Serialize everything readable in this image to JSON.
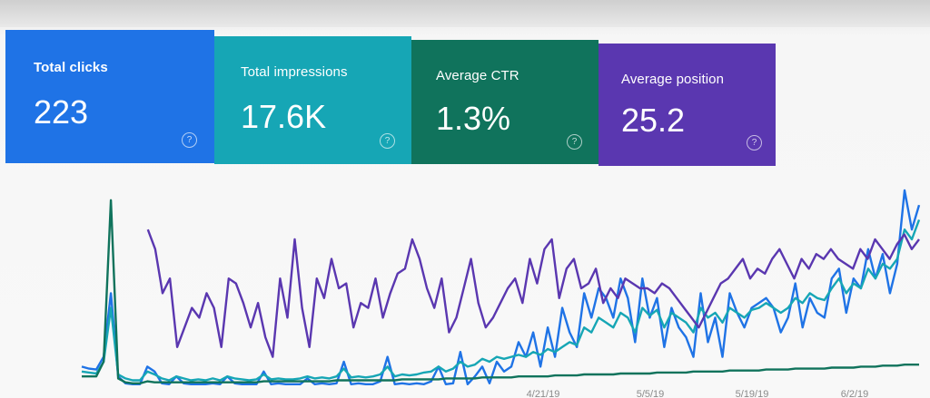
{
  "cards": [
    {
      "label": "Total clicks",
      "value": "223",
      "color": "#1f73e6"
    },
    {
      "label": "Total impressions",
      "value": "17.6K",
      "color": "#16a6b5"
    },
    {
      "label": "Average CTR",
      "value": "1.3%",
      "color": "#10735c"
    },
    {
      "label": "Average position",
      "value": "25.2",
      "color": "#5a37b0"
    }
  ],
  "help_glyph": "?",
  "chart_data": {
    "type": "line",
    "x_tick_labels": [
      "4/21/19",
      "5/5/19",
      "5/19/19",
      "6/2/19"
    ],
    "series": [
      {
        "color": "#1f73e6",
        "values": [
          20,
          18,
          17,
          30,
          95,
          10,
          3,
          2,
          2,
          20,
          15,
          3,
          2,
          10,
          3,
          2,
          2,
          2,
          3,
          2,
          10,
          3,
          2,
          2,
          2,
          15,
          2,
          3,
          2,
          2,
          2,
          8,
          2,
          3,
          2,
          3,
          25,
          2,
          3,
          2,
          2,
          5,
          30,
          2,
          3,
          2,
          3,
          2,
          5,
          20,
          2,
          3,
          35,
          2,
          10,
          20,
          3,
          25,
          15,
          20,
          45,
          30,
          55,
          20,
          60,
          30,
          80,
          55,
          40,
          95,
          70,
          100,
          90,
          70,
          110,
          90,
          45,
          110,
          70,
          90,
          40,
          80,
          60,
          50,
          30,
          95,
          45,
          70,
          30,
          95,
          75,
          60,
          80,
          85,
          90,
          80,
          55,
          70,
          105,
          60,
          90,
          75,
          70,
          110,
          120,
          75,
          110,
          100,
          140,
          110,
          135,
          95,
          125,
          200,
          160,
          185
        ]
      },
      {
        "color": "#16a6b5",
        "values": [
          15,
          14,
          13,
          25,
          80,
          12,
          8,
          6,
          6,
          15,
          12,
          8,
          6,
          10,
          8,
          6,
          7,
          6,
          8,
          6,
          10,
          8,
          7,
          6,
          7,
          12,
          7,
          8,
          7,
          7,
          8,
          10,
          8,
          9,
          8,
          10,
          18,
          9,
          10,
          9,
          10,
          12,
          20,
          10,
          12,
          11,
          12,
          14,
          15,
          20,
          15,
          18,
          25,
          20,
          22,
          28,
          25,
          30,
          28,
          30,
          32,
          30,
          35,
          32,
          38,
          35,
          40,
          45,
          42,
          60,
          55,
          70,
          65,
          60,
          75,
          70,
          55,
          80,
          72,
          78,
          60,
          75,
          70,
          65,
          55,
          80,
          70,
          75,
          65,
          80,
          75,
          70,
          78,
          80,
          85,
          80,
          75,
          80,
          90,
          85,
          95,
          90,
          88,
          100,
          110,
          95,
          105,
          100,
          120,
          110,
          125,
          120,
          130,
          160,
          150,
          170
        ]
      },
      {
        "color": "#10735c",
        "values": [
          10,
          10,
          10,
          25,
          190,
          8,
          4,
          3,
          3,
          5,
          4,
          4,
          4,
          4,
          4,
          4,
          4,
          4,
          4,
          4,
          4,
          4,
          4,
          4,
          4,
          5,
          5,
          5,
          5,
          5,
          5,
          5,
          5,
          5,
          5,
          6,
          6,
          6,
          6,
          6,
          6,
          6,
          6,
          6,
          7,
          7,
          7,
          7,
          7,
          7,
          8,
          8,
          8,
          8,
          8,
          9,
          9,
          9,
          9,
          9,
          10,
          10,
          10,
          10,
          10,
          11,
          11,
          11,
          11,
          12,
          12,
          12,
          12,
          12,
          13,
          13,
          13,
          13,
          13,
          14,
          14,
          14,
          14,
          14,
          15,
          15,
          15,
          15,
          15,
          16,
          16,
          16,
          16,
          16,
          17,
          17,
          17,
          17,
          18,
          18,
          18,
          18,
          18,
          19,
          19,
          19,
          19,
          20,
          20,
          20,
          21,
          21,
          21,
          22,
          22,
          22
        ]
      },
      {
        "color": "#5a37b0",
        "values": [
          null,
          null,
          null,
          null,
          null,
          null,
          null,
          null,
          null,
          160,
          140,
          95,
          110,
          40,
          60,
          80,
          70,
          95,
          80,
          40,
          110,
          105,
          85,
          60,
          85,
          50,
          30,
          110,
          70,
          150,
          80,
          40,
          110,
          90,
          130,
          100,
          105,
          60,
          85,
          80,
          110,
          70,
          95,
          115,
          120,
          150,
          130,
          100,
          80,
          110,
          55,
          70,
          100,
          130,
          85,
          60,
          70,
          85,
          100,
          110,
          85,
          130,
          105,
          140,
          150,
          90,
          120,
          130,
          100,
          105,
          120,
          85,
          100,
          90,
          110,
          105,
          100,
          100,
          95,
          105,
          100,
          90,
          80,
          70,
          60,
          75,
          90,
          105,
          110,
          120,
          130,
          110,
          120,
          115,
          130,
          140,
          125,
          110,
          130,
          120,
          135,
          130,
          140,
          130,
          125,
          120,
          140,
          130,
          150,
          140,
          130,
          145,
          155,
          140,
          150
        ]
      }
    ]
  }
}
